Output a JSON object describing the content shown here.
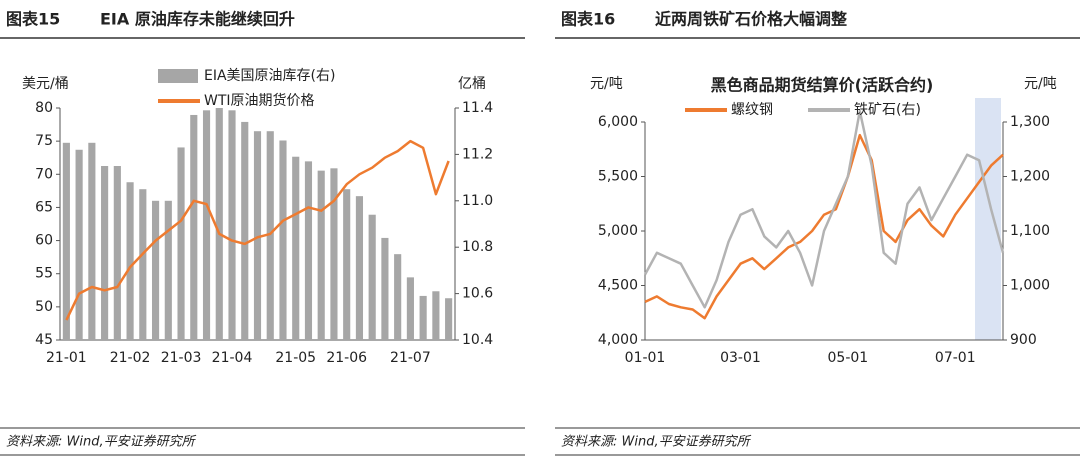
{
  "panels": [
    {
      "number": "图表15",
      "heading": "EIA 原油库存未能继续回升",
      "source": "资料来源: Wind,平安证券研究所"
    },
    {
      "number": "图表16",
      "heading": "近两周铁矿石价格大幅调整",
      "source": "资料来源: Wind,平安证券研究所"
    }
  ],
  "chart_data": [
    {
      "type": "combo",
      "y_label": "美元/桶",
      "y2_label": "亿桶",
      "categories": [
        "21-01",
        null,
        null,
        null,
        null,
        "21-02",
        null,
        null,
        null,
        "21-03",
        null,
        null,
        null,
        "21-04",
        null,
        null,
        null,
        null,
        "21-05",
        null,
        null,
        null,
        "21-06",
        null,
        null,
        null,
        null,
        "21-07",
        null,
        null,
        null
      ],
      "series": [
        {
          "name": "EIA美国原油库存(右)",
          "type": "bar",
          "axis": "y2",
          "color": "#a6a6a6",
          "values": [
            11.25,
            11.22,
            11.25,
            11.15,
            11.15,
            11.08,
            11.05,
            11.0,
            11.0,
            11.23,
            11.37,
            11.39,
            11.4,
            11.39,
            11.34,
            11.3,
            11.3,
            11.26,
            11.19,
            11.17,
            11.13,
            11.14,
            11.05,
            11.02,
            10.94,
            10.84,
            10.77,
            10.67,
            10.59,
            10.61,
            10.58
          ]
        },
        {
          "name": "WTI原油期货价格",
          "type": "line",
          "color": "#ee7b30",
          "values": [
            48,
            52,
            53,
            52.5,
            53,
            56,
            58,
            60,
            61.5,
            63,
            66,
            65.5,
            61,
            60,
            59.5,
            60.5,
            61,
            63,
            64,
            65,
            64.5,
            66,
            68.5,
            70,
            71,
            72.5,
            73.5,
            75,
            74,
            67,
            72
          ]
        }
      ],
      "ylim": [
        45,
        80
      ],
      "yticks": [
        45,
        50,
        55,
        60,
        65,
        70,
        75,
        80
      ],
      "y2lim": [
        10.4,
        11.4
      ],
      "y2ticks": [
        10.4,
        10.6,
        10.8,
        {
          "value": 11,
          "label": "11.0"
        },
        11.2,
        11.4
      ]
    },
    {
      "type": "line",
      "title": "黑色商品期货结算价(活跃合约)",
      "y_label": "元/吨",
      "y2_label": "元/吨",
      "categories": [
        "01-01",
        null,
        null,
        null,
        null,
        null,
        null,
        null,
        "03-01",
        null,
        null,
        null,
        null,
        null,
        null,
        null,
        null,
        "05-01",
        null,
        null,
        null,
        null,
        null,
        null,
        null,
        null,
        "07-01",
        null,
        null,
        null,
        null
      ],
      "series": [
        {
          "name": "螺纹钢",
          "color": "#ee7b30",
          "values": [
            4350,
            4400,
            4330,
            4300,
            4280,
            4200,
            4400,
            4550,
            4700,
            4750,
            4650,
            4750,
            4850,
            4900,
            5000,
            5150,
            5200,
            5500,
            5880,
            5650,
            5000,
            4900,
            5100,
            5200,
            5050,
            4950,
            5150,
            5300,
            5450,
            5600,
            5700
          ]
        },
        {
          "name": "铁矿石(右)",
          "axis": "y2",
          "color": "#b3b3b3",
          "values": [
            1020,
            1060,
            1050,
            1040,
            1000,
            960,
            1010,
            1080,
            1130,
            1140,
            1090,
            1070,
            1100,
            1060,
            1000,
            1100,
            1150,
            1200,
            1320,
            1220,
            1060,
            1040,
            1150,
            1180,
            1120,
            1160,
            1200,
            1240,
            1230,
            1140,
            1060
          ]
        }
      ],
      "ylim": [
        4000,
        6000
      ],
      "yticks": [
        {
          "value": 4000,
          "label": "4,000"
        },
        {
          "value": 4500,
          "label": "4,500"
        },
        {
          "value": 5000,
          "label": "5,000"
        },
        {
          "value": 5500,
          "label": "5,500"
        },
        {
          "value": 6000,
          "label": "6,000"
        }
      ],
      "y2lim": [
        900,
        1300
      ],
      "y2ticks": [
        900,
        {
          "value": 1000,
          "label": "1,000"
        },
        {
          "value": 1100,
          "label": "1,100"
        },
        {
          "value": 1200,
          "label": "1,200"
        },
        {
          "value": 1300,
          "label": "1,300"
        }
      ]
    }
  ]
}
